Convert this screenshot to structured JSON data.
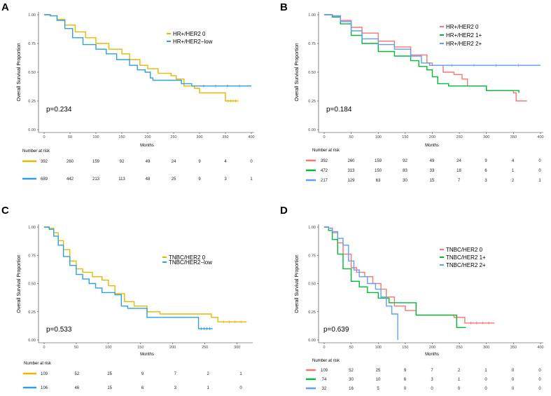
{
  "figure": {
    "ylabel": "Overall Survival Proportion",
    "xlabel": "Months",
    "risk_title": "Number at risk"
  },
  "colors": {
    "yellow": "#E7B800",
    "blue": "#2E9FDF",
    "red": "#F8766D",
    "green": "#00BA38",
    "lightblue": "#619CFF"
  },
  "chart_data": [
    {
      "panel": "A",
      "type": "line",
      "xlim": [
        0,
        400
      ],
      "ylim": [
        0,
        1
      ],
      "xticks": [
        0,
        50,
        100,
        150,
        200,
        250,
        300,
        350,
        400
      ],
      "yticks": [
        "0.00",
        "0.25",
        "0.50",
        "0.75",
        "1.00"
      ],
      "pvalue": "p=0.234",
      "risk_times": [
        0,
        50,
        100,
        150,
        200,
        250,
        300,
        350,
        400
      ],
      "series": [
        {
          "name": "HR+/HER2 0",
          "color": "#E7B800",
          "points": [
            [
              0,
              1
            ],
            [
              12,
              0.99
            ],
            [
              25,
              0.96
            ],
            [
              40,
              0.91
            ],
            [
              60,
              0.85
            ],
            [
              80,
              0.8
            ],
            [
              100,
              0.75
            ],
            [
              125,
              0.7
            ],
            [
              150,
              0.66
            ],
            [
              165,
              0.61
            ],
            [
              185,
              0.56
            ],
            [
              200,
              0.53
            ],
            [
              220,
              0.49
            ],
            [
              245,
              0.47
            ],
            [
              255,
              0.44
            ],
            [
              270,
              0.38
            ],
            [
              290,
              0.36
            ],
            [
              300,
              0.32
            ],
            [
              340,
              0.32
            ],
            [
              350,
              0.25
            ],
            [
              375,
              0.25
            ]
          ],
          "risk": [
            "392",
            "260",
            "159",
            "92",
            "49",
            "24",
            "9",
            "4",
            "0"
          ]
        },
        {
          "name": "HR+/HER2−low",
          "color": "#2E9FDF",
          "points": [
            [
              0,
              1
            ],
            [
              12,
              0.99
            ],
            [
              25,
              0.95
            ],
            [
              40,
              0.88
            ],
            [
              55,
              0.8
            ],
            [
              75,
              0.74
            ],
            [
              100,
              0.7
            ],
            [
              120,
              0.66
            ],
            [
              140,
              0.61
            ],
            [
              165,
              0.56
            ],
            [
              180,
              0.52
            ],
            [
              195,
              0.5
            ],
            [
              205,
              0.45
            ],
            [
              210,
              0.43
            ],
            [
              250,
              0.43
            ],
            [
              265,
              0.4
            ],
            [
              285,
              0.38
            ],
            [
              400,
              0.38
            ]
          ],
          "risk": [
            "689",
            "442",
            "213",
            "113",
            "48",
            "25",
            "9",
            "3",
            "1"
          ]
        }
      ]
    },
    {
      "panel": "B",
      "type": "line",
      "xlim": [
        0,
        400
      ],
      "ylim": [
        0,
        1
      ],
      "xticks": [
        0,
        50,
        100,
        150,
        200,
        250,
        300,
        350,
        400
      ],
      "yticks": [
        "0.00",
        "0.25",
        "0.50",
        "0.75",
        "1.00"
      ],
      "pvalue": "p=0.184",
      "risk_times": [
        0,
        50,
        100,
        150,
        200,
        250,
        300,
        350,
        400
      ],
      "series": [
        {
          "name": "HR+/HER2 0",
          "color": "#F8766D",
          "points": [
            [
              0,
              1
            ],
            [
              15,
              0.99
            ],
            [
              30,
              0.95
            ],
            [
              50,
              0.89
            ],
            [
              70,
              0.84
            ],
            [
              100,
              0.77
            ],
            [
              130,
              0.72
            ],
            [
              160,
              0.65
            ],
            [
              190,
              0.58
            ],
            [
              200,
              0.56
            ],
            [
              220,
              0.5
            ],
            [
              240,
              0.48
            ],
            [
              255,
              0.44
            ],
            [
              265,
              0.38
            ],
            [
              300,
              0.34
            ],
            [
              350,
              0.32
            ],
            [
              355,
              0.25
            ],
            [
              375,
              0.25
            ]
          ],
          "risk": [
            "392",
            "260",
            "159",
            "92",
            "49",
            "24",
            "9",
            "4",
            "0"
          ]
        },
        {
          "name": "HR+/HER2 1+",
          "color": "#00BA38",
          "points": [
            [
              0,
              1
            ],
            [
              15,
              0.98
            ],
            [
              30,
              0.92
            ],
            [
              50,
              0.82
            ],
            [
              70,
              0.75
            ],
            [
              100,
              0.68
            ],
            [
              130,
              0.64
            ],
            [
              160,
              0.6
            ],
            [
              175,
              0.55
            ],
            [
              190,
              0.52
            ],
            [
              200,
              0.46
            ],
            [
              210,
              0.4
            ],
            [
              230,
              0.38
            ],
            [
              300,
              0.34
            ],
            [
              360,
              0.32
            ]
          ],
          "risk": [
            "472",
            "313",
            "150",
            "83",
            "33",
            "18",
            "6",
            "1",
            "0"
          ]
        },
        {
          "name": "HR+/HER2 2+",
          "color": "#619CFF",
          "points": [
            [
              0,
              1
            ],
            [
              15,
              0.99
            ],
            [
              30,
              0.94
            ],
            [
              50,
              0.86
            ],
            [
              70,
              0.79
            ],
            [
              100,
              0.74
            ],
            [
              130,
              0.7
            ],
            [
              160,
              0.64
            ],
            [
              180,
              0.58
            ],
            [
              195,
              0.56
            ],
            [
              400,
              0.56
            ]
          ],
          "risk": [
            "217",
            "129",
            "63",
            "30",
            "15",
            "7",
            "3",
            "2",
            "1"
          ]
        }
      ]
    },
    {
      "panel": "C",
      "type": "line",
      "xlim": [
        0,
        320
      ],
      "ylim": [
        0,
        1
      ],
      "xticks": [
        0,
        50,
        100,
        150,
        200,
        250,
        300
      ],
      "yticks": [
        "0.00",
        "0.25",
        "0.50",
        "0.75",
        "1.00"
      ],
      "pvalue": "p=0.533",
      "risk_times": [
        0,
        50,
        100,
        150,
        200,
        250,
        300
      ],
      "series": [
        {
          "name": "TNBC/HER2 0",
          "color": "#E7B800",
          "points": [
            [
              0,
              1
            ],
            [
              8,
              0.99
            ],
            [
              15,
              0.95
            ],
            [
              22,
              0.88
            ],
            [
              30,
              0.8
            ],
            [
              40,
              0.7
            ],
            [
              50,
              0.63
            ],
            [
              60,
              0.6
            ],
            [
              75,
              0.56
            ],
            [
              90,
              0.53
            ],
            [
              100,
              0.48
            ],
            [
              110,
              0.41
            ],
            [
              125,
              0.34
            ],
            [
              140,
              0.3
            ],
            [
              160,
              0.25
            ],
            [
              180,
              0.23
            ],
            [
              260,
              0.2
            ],
            [
              270,
              0.16
            ],
            [
              315,
              0.16
            ]
          ],
          "risk": [
            "109",
            "52",
            "25",
            "9",
            "7",
            "2",
            "1"
          ]
        },
        {
          "name": "TNBC/HER2−low",
          "color": "#2E9FDF",
          "points": [
            [
              0,
              1
            ],
            [
              8,
              0.98
            ],
            [
              15,
              0.92
            ],
            [
              22,
              0.84
            ],
            [
              30,
              0.74
            ],
            [
              40,
              0.66
            ],
            [
              50,
              0.58
            ],
            [
              60,
              0.54
            ],
            [
              70,
              0.5
            ],
            [
              80,
              0.46
            ],
            [
              90,
              0.42
            ],
            [
              110,
              0.4
            ],
            [
              120,
              0.3
            ],
            [
              130,
              0.28
            ],
            [
              160,
              0.2
            ],
            [
              230,
              0.2
            ],
            [
              240,
              0.1
            ],
            [
              262,
              0.1
            ]
          ],
          "risk": [
            "106",
            "46",
            "15",
            "6",
            "3",
            "1",
            "0"
          ]
        }
      ]
    },
    {
      "panel": "D",
      "type": "line",
      "xlim": [
        0,
        400
      ],
      "ylim": [
        0,
        1
      ],
      "xticks": [
        0,
        50,
        100,
        150,
        200,
        250,
        300,
        350,
        400
      ],
      "yticks": [
        "0.00",
        "0.25",
        "0.50",
        "0.75",
        "1.00"
      ],
      "pvalue": "p=0.639",
      "risk_times": [
        0,
        50,
        100,
        150,
        200,
        250,
        300,
        350,
        400
      ],
      "series": [
        {
          "name": "TNBC/HER2 0",
          "color": "#F8766D",
          "points": [
            [
              0,
              1
            ],
            [
              8,
              0.99
            ],
            [
              15,
              0.95
            ],
            [
              25,
              0.86
            ],
            [
              35,
              0.76
            ],
            [
              50,
              0.64
            ],
            [
              60,
              0.6
            ],
            [
              75,
              0.56
            ],
            [
              90,
              0.5
            ],
            [
              105,
              0.45
            ],
            [
              115,
              0.38
            ],
            [
              130,
              0.3
            ],
            [
              150,
              0.26
            ],
            [
              170,
              0.22
            ],
            [
              240,
              0.2
            ],
            [
              260,
              0.15
            ],
            [
              315,
              0.15
            ]
          ],
          "risk": [
            "109",
            "52",
            "25",
            "9",
            "7",
            "2",
            "1",
            "0",
            "0"
          ]
        },
        {
          "name": "TNBC/HER2 1+",
          "color": "#00BA38",
          "points": [
            [
              0,
              1
            ],
            [
              8,
              0.97
            ],
            [
              15,
              0.89
            ],
            [
              25,
              0.76
            ],
            [
              35,
              0.63
            ],
            [
              50,
              0.52
            ],
            [
              65,
              0.47
            ],
            [
              80,
              0.42
            ],
            [
              100,
              0.37
            ],
            [
              120,
              0.33
            ],
            [
              165,
              0.33
            ],
            [
              170,
              0.22
            ],
            [
              240,
              0.22
            ],
            [
              245,
              0.11
            ],
            [
              262,
              0.11
            ]
          ],
          "risk": [
            "74",
            "30",
            "10",
            "6",
            "3",
            "1",
            "0",
            "0",
            "0"
          ]
        },
        {
          "name": "TNBC/HER2 2+",
          "color": "#619CFF",
          "points": [
            [
              0,
              1
            ],
            [
              8,
              0.99
            ],
            [
              15,
              0.96
            ],
            [
              25,
              0.9
            ],
            [
              35,
              0.84
            ],
            [
              45,
              0.7
            ],
            [
              55,
              0.62
            ],
            [
              65,
              0.56
            ],
            [
              80,
              0.5
            ],
            [
              95,
              0.45
            ],
            [
              105,
              0.38
            ],
            [
              115,
              0.3
            ],
            [
              125,
              0.23
            ],
            [
              136,
              0.23
            ],
            [
              136,
              0
            ]
          ],
          "risk": [
            "32",
            "16",
            "5",
            "0",
            "0",
            "0",
            "0",
            "0",
            "0"
          ]
        }
      ]
    }
  ]
}
